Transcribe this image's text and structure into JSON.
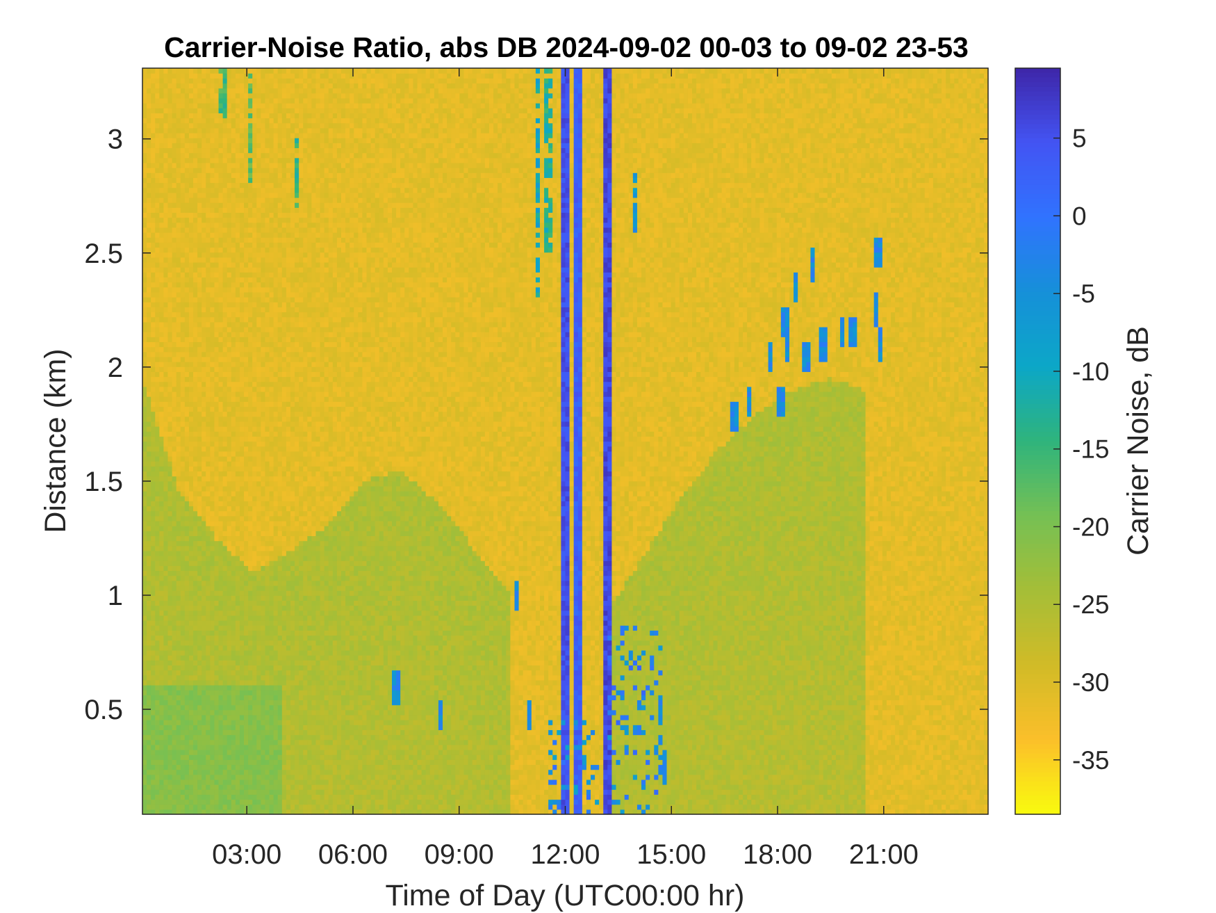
{
  "chart_data": {
    "type": "heatmap",
    "title": "Carrier-Noise Ratio, abs DB 2024-09-02 00-03 to 09-02 23-53",
    "xlabel": "Time of Day (UTC00:00 hr)",
    "ylabel": "Distance (km)",
    "colorbar_label": "Carrier Noise, dB",
    "xlim": [
      0.05,
      23.95
    ],
    "ylim": [
      0.04,
      3.31
    ],
    "clim": [
      -38.5,
      9.5
    ],
    "x_ticks": [
      3,
      6,
      9,
      12,
      15,
      18,
      21
    ],
    "x_tick_labels": [
      "03:00",
      "06:00",
      "09:00",
      "12:00",
      "15:00",
      "18:00",
      "21:00"
    ],
    "y_ticks": [
      0.5,
      1,
      1.5,
      2,
      2.5,
      3
    ],
    "y_tick_labels": [
      "0.5",
      "1",
      "1.5",
      "2",
      "2.5",
      "3"
    ],
    "colorbar_ticks": [
      5,
      0,
      -5,
      -10,
      -15,
      -20,
      -25,
      -30,
      -35
    ],
    "colorbar_tick_labels": [
      "5",
      "0",
      "-5",
      "-10",
      "-15",
      "-20",
      "-25",
      "-30",
      "-35"
    ],
    "colormap": [
      "#f9fb0e",
      "#fbbf2a",
      "#d1bb27",
      "#a5be37",
      "#75c054",
      "#2fb47c",
      "#0ca7c7",
      "#1690d9",
      "#3073fe",
      "#4354f3",
      "#3e26a8"
    ],
    "background_level_db": -31,
    "features": [
      {
        "kind": "aerosol_layer",
        "x_range": [
          0.05,
          10.5
        ],
        "top_km": [
          1.95,
          1.45,
          1.25,
          1.1,
          1.2,
          1.3,
          1.5,
          1.55,
          1.4,
          1.2,
          1.0
        ],
        "value_db": -25
      },
      {
        "kind": "aerosol_layer",
        "x_range": [
          13.3,
          20.5
        ],
        "top_km": [
          0.95,
          1.2,
          1.45,
          1.65,
          1.8,
          1.9,
          1.95,
          1.9
        ],
        "value_db": -25
      },
      {
        "kind": "near_surface_enhancement",
        "x_range": [
          0.05,
          4.0
        ],
        "top_km": 0.6,
        "value_db": -21
      },
      {
        "kind": "vertical_band",
        "x": 12.0,
        "value_db": 5
      },
      {
        "kind": "vertical_band",
        "x": 12.35,
        "value_db": 3
      },
      {
        "kind": "vertical_band",
        "x": 13.2,
        "value_db": 6
      },
      {
        "kind": "cloud_streak",
        "x": 11.2,
        "y_range": [
          2.3,
          3.3
        ],
        "value_db": -10
      },
      {
        "kind": "cloud_streak",
        "x": 11.5,
        "y_range": [
          2.5,
          3.3
        ],
        "value_db": -13
      },
      {
        "kind": "cloud_streak",
        "x": 14.0,
        "y_range": [
          2.6,
          2.85
        ],
        "value_db": -6
      },
      {
        "kind": "cloud_streak",
        "x": 4.4,
        "y_range": [
          2.7,
          3.0
        ],
        "value_db": -14
      },
      {
        "kind": "cloud_streak",
        "x": 2.3,
        "y_range": [
          3.1,
          3.3
        ],
        "value_db": -16
      },
      {
        "kind": "cloud_streak",
        "x": 3.1,
        "y_range": [
          2.8,
          3.3
        ],
        "value_db": -18
      },
      {
        "kind": "boundary_layer_clouds",
        "x_range": [
          13.2,
          14.7
        ],
        "y_range": [
          0.05,
          0.9
        ],
        "value_db": -3
      },
      {
        "kind": "boundary_layer_clouds",
        "x_range": [
          11.5,
          12.9
        ],
        "y_range": [
          0.05,
          0.45
        ],
        "value_db": -4
      },
      {
        "kind": "isolated_clouds",
        "points": [
          [
            16.8,
            1.78
          ],
          [
            17.2,
            1.85
          ],
          [
            17.8,
            2.05
          ],
          [
            18.1,
            1.85
          ],
          [
            18.2,
            2.2
          ],
          [
            18.3,
            2.1
          ],
          [
            18.5,
            2.35
          ],
          [
            18.8,
            2.05
          ],
          [
            19.0,
            2.45
          ],
          [
            19.3,
            2.1
          ],
          [
            19.8,
            2.15
          ],
          [
            20.1,
            2.15
          ],
          [
            20.8,
            2.25
          ],
          [
            20.9,
            2.1
          ],
          [
            20.85,
            2.5
          ],
          [
            7.2,
            0.6
          ],
          [
            8.5,
            0.47
          ],
          [
            11.0,
            0.48
          ],
          [
            14.7,
            0.5
          ],
          [
            14.8,
            0.25
          ],
          [
            10.6,
            1.0
          ]
        ],
        "value_db": -4
      }
    ]
  }
}
